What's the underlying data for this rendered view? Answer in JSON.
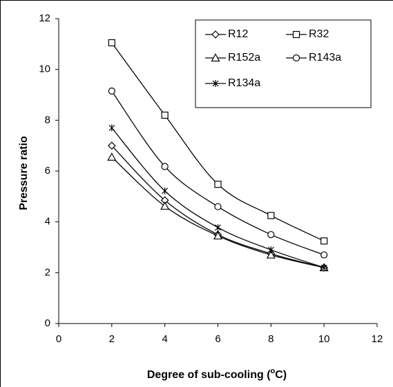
{
  "chart_data": {
    "type": "line",
    "title": "",
    "xlabel": "Degree of sub-cooling (",
    "xlabel_sup": "o",
    "xlabel_end": "C)",
    "ylabel": "Pressure ratio",
    "xlim": [
      0,
      12
    ],
    "ylim": [
      0,
      12
    ],
    "x_ticks": [
      "0",
      "2",
      "4",
      "6",
      "8",
      "10",
      "12"
    ],
    "y_ticks": [
      "0",
      "2",
      "4",
      "6",
      "8",
      "10",
      "12"
    ],
    "grid": false,
    "legend_position": "top-right",
    "x": [
      2,
      4,
      6,
      8,
      10
    ],
    "series": [
      {
        "name": "R12",
        "marker": "diamond",
        "values": [
          7.0,
          4.85,
          3.5,
          2.75,
          2.2
        ]
      },
      {
        "name": "R32",
        "marker": "square",
        "values": [
          11.05,
          8.2,
          5.48,
          4.25,
          3.25
        ]
      },
      {
        "name": "R152a",
        "marker": "triangle",
        "values": [
          6.55,
          4.62,
          3.45,
          2.7,
          2.2
        ]
      },
      {
        "name": "R143a",
        "marker": "circle",
        "values": [
          9.15,
          6.18,
          4.6,
          3.5,
          2.7
        ]
      },
      {
        "name": "R134a",
        "marker": "star",
        "values": [
          7.7,
          5.22,
          3.78,
          2.9,
          2.2
        ]
      }
    ]
  }
}
